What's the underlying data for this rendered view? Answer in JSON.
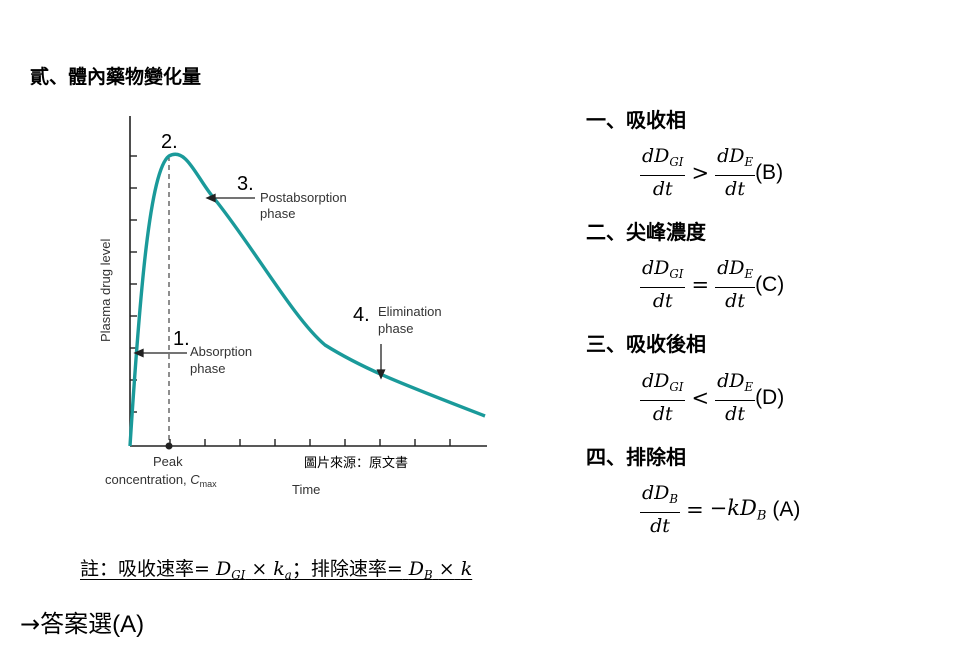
{
  "title": "貳、體內藥物變化量",
  "figure": {
    "ylabel": "Plasma drug level",
    "xlabel": "Time",
    "source": "圖片來源：原文書",
    "peak_label_line1": "Peak",
    "peak_label_line2": "concentration, ",
    "peak_label_sym": "C",
    "peak_label_sub": "max",
    "markers": {
      "m1": "1.",
      "m2": "2.",
      "m3": "3.",
      "m4": "4."
    },
    "absorption_line1": "Absorption",
    "absorption_line2": "phase",
    "postabsorption_line1": "Postabsorption",
    "postabsorption_line2": "phase",
    "elimination_line1": "Elimination",
    "elimination_line2": "phase",
    "curve_color": "#1a9a9a"
  },
  "phases": [
    {
      "heading": "一、吸收相",
      "left_num": "dD",
      "left_sub": "GI",
      "den": "dt",
      "op": ">",
      "right_num": "dD",
      "right_sub": "E",
      "tag": "(B)"
    },
    {
      "heading": "二、尖峰濃度",
      "left_num": "dD",
      "left_sub": "GI",
      "den": "dt",
      "op": "=",
      "right_num": "dD",
      "right_sub": "E",
      "tag": "(C)"
    },
    {
      "heading": "三、吸收後相",
      "left_num": "dD",
      "left_sub": "GI",
      "den": "dt",
      "op": "<",
      "right_num": "dD",
      "right_sub": "E",
      "tag": "(D)"
    },
    {
      "heading": "四、排除相",
      "left_num": "dD",
      "left_sub": "B",
      "den": "dt",
      "op": "=",
      "rhs": "−kD",
      "rhs_sub": "B",
      "tag": "(A)"
    }
  ],
  "note": {
    "prefix": "註：吸收速率",
    "eq1": "=",
    "d_sym": "D",
    "d_sub": "GI",
    "times": "×",
    "k_sym": "k",
    "k_sub": "a",
    "mid": "；排除速率",
    "eq2": "=",
    "d2_sym": "D",
    "d2_sub": "B",
    "times2": "×",
    "k2_sym": "k"
  },
  "answer": {
    "arrow": "→",
    "text": "答案選",
    "choice": "(A)"
  }
}
